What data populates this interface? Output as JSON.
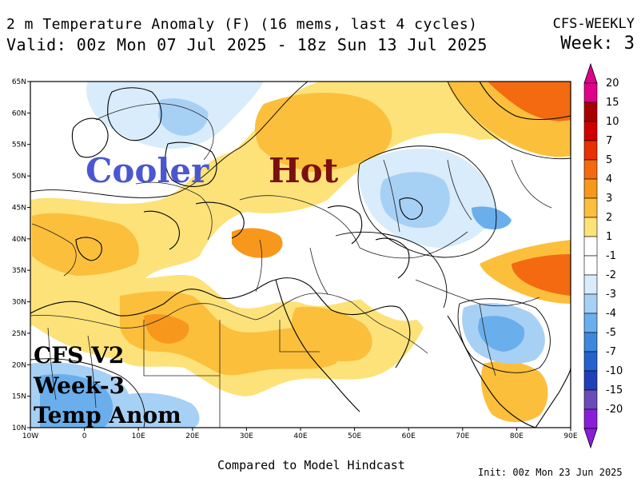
{
  "header": {
    "title": "2 m Temperature Anomaly (F) (16 mems, last 4 cycles)",
    "valid": "Valid: 00z Mon 07 Jul 2025 - 18z Sun 13 Jul 2025",
    "model": "CFS-WEEKLY",
    "week": "Week: 3"
  },
  "overlay": {
    "cooler": "Cooler",
    "hot": "Hot",
    "cfs_line1": "CFS V2",
    "cfs_line2": "Week-3",
    "cfs_line3": "Temp Anom"
  },
  "footer": {
    "compared": "Compared to Model Hindcast",
    "init": "Init: 00z Mon 23 Jun 2025"
  },
  "axes": {
    "lat_labels": [
      "65N",
      "60N",
      "55N",
      "50N",
      "45N",
      "40N",
      "35N",
      "30N",
      "25N",
      "20N",
      "15N",
      "10N"
    ],
    "lon_labels": [
      "10W",
      "0",
      "10E",
      "20E",
      "30E",
      "40E",
      "50E",
      "60E",
      "70E",
      "80E",
      "90E"
    ]
  },
  "colorbar": {
    "labels": [
      "20",
      "15",
      "10",
      "7",
      "5",
      "4",
      "3",
      "2",
      "1",
      "-1",
      "-2",
      "-3",
      "-4",
      "-5",
      "-7",
      "-10",
      "-15",
      "-20"
    ],
    "colors": [
      "#e0008a",
      "#a80000",
      "#d00000",
      "#e83000",
      "#f46a10",
      "#f7981c",
      "#fbbf3c",
      "#fde27a",
      "#ffffff",
      "#ffffff",
      "#d8ecfb",
      "#a7d0f5",
      "#6aaeec",
      "#3f86df",
      "#2560cf",
      "#1e40b8",
      "#6a4cb8",
      "#8a1ed8"
    ]
  },
  "colors": {
    "warm_light": "#fde27a",
    "warm_mid": "#fbbf3c",
    "warm_strong": "#f7981c",
    "hot": "#f46a10",
    "cool_light": "#d8ecfb",
    "cool_mid": "#a7d0f5",
    "cool_strong": "#6aaeec"
  }
}
